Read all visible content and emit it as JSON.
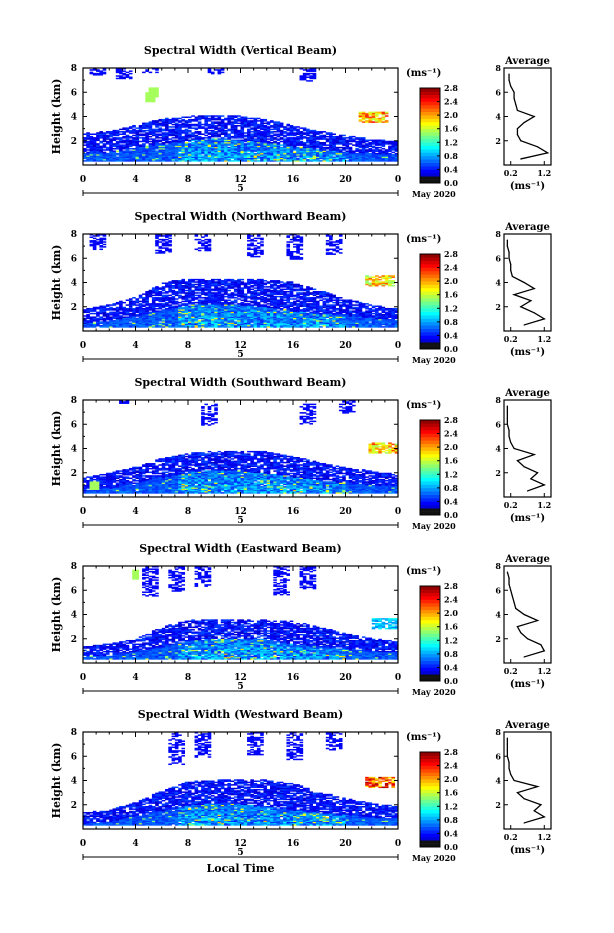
{
  "figure": {
    "x_label": "Local Time",
    "date_label": "May 2020",
    "day_label": "5",
    "ylabel": "Height (km)",
    "units": "(ms⁻¹)"
  },
  "chart_data": [
    {
      "type": "heatmap",
      "title": "Spectral Width (Vertical Beam)",
      "xlabel": "",
      "ylabel": "Height (km)",
      "xlim": [
        0,
        24
      ],
      "ylim": [
        0,
        8
      ],
      "x_ticks": [
        "0",
        "4",
        "8",
        "12",
        "16",
        "20",
        "0"
      ],
      "y_ticks": [
        "2",
        "4",
        "6",
        "8"
      ],
      "colorbar": {
        "label": "(ms⁻¹)",
        "range": [
          0,
          2.8
        ],
        "ticks": [
          "0.0",
          "0.4",
          "0.8",
          "1.2",
          "1.6",
          "2.0",
          "2.4",
          "2.8"
        ]
      },
      "structure": {
        "top_km": [
          2.6,
          2.8,
          3.3,
          3.8,
          4.0,
          4.1,
          4.0,
          3.7,
          3.2,
          2.8,
          2.4,
          2.1,
          1.9
        ],
        "core_top_km": [
          0.9,
          1.0,
          1.4,
          1.7,
          2.0,
          2.2,
          2.0,
          1.8,
          1.5,
          1.2,
          1.0,
          0.9,
          0.8
        ],
        "sparse": [
          [
            1,
            7.3,
            7.9
          ],
          [
            3,
            7.0,
            7.9
          ],
          [
            5,
            7.5,
            7.9
          ],
          [
            10,
            7.4,
            7.9
          ],
          [
            17,
            6.8,
            7.9
          ]
        ],
        "hotspot": [
          22,
          3.9,
          2.2
        ],
        "cyan": [
          [
            5,
            5.5
          ],
          [
            5.3,
            5.9
          ]
        ]
      },
      "average_profile": {
        "title": "Average",
        "xlabel": "(ms⁻¹)",
        "xlim": [
          0,
          1.4
        ],
        "ylim": [
          0,
          8
        ],
        "x_ticks": [
          "0.2",
          "1.2"
        ],
        "y_ticks": [
          "2",
          "4",
          "6",
          "8"
        ],
        "heights_km": [
          0.5,
          1.0,
          1.5,
          2.0,
          2.5,
          3.0,
          3.5,
          4.0,
          4.5,
          5.0,
          5.5,
          6.0,
          6.5,
          7.0,
          7.5
        ],
        "values": [
          0.5,
          1.3,
          1.0,
          0.5,
          0.4,
          0.4,
          0.6,
          0.9,
          0.4,
          0.35,
          0.3,
          0.3,
          0.2,
          0.15,
          0.15
        ]
      }
    },
    {
      "type": "heatmap",
      "title": "Spectral Width (Northward Beam)",
      "xlabel": "",
      "ylabel": "Height (km)",
      "xlim": [
        0,
        24
      ],
      "ylim": [
        0,
        8
      ],
      "x_ticks": [
        "0",
        "4",
        "8",
        "12",
        "16",
        "20",
        "0"
      ],
      "y_ticks": [
        "2",
        "4",
        "6",
        "8"
      ],
      "colorbar": {
        "label": "(ms⁻¹)",
        "range": [
          0,
          2.8
        ],
        "ticks": [
          "0.0",
          "0.4",
          "0.8",
          "1.2",
          "1.6",
          "2.0",
          "2.4",
          "2.8"
        ]
      },
      "structure": {
        "top_km": [
          1.8,
          2.2,
          2.8,
          4.0,
          4.3,
          4.3,
          4.3,
          4.2,
          4.0,
          3.3,
          2.6,
          2.1,
          1.8
        ],
        "core_top_km": [
          0.6,
          0.8,
          1.2,
          1.7,
          2.1,
          2.2,
          2.1,
          1.9,
          1.6,
          1.4,
          1.2,
          1.0,
          0.9
        ],
        "sparse": [
          [
            1,
            6.6,
            7.9
          ],
          [
            6,
            6.3,
            7.9
          ],
          [
            9,
            6.5,
            7.9
          ],
          [
            13,
            6.0,
            7.9
          ],
          [
            16,
            5.8,
            7.9
          ],
          [
            19,
            6.2,
            7.9
          ]
        ],
        "hotspot": [
          22.5,
          4.1,
          2.0
        ],
        "cyan": []
      },
      "average_profile": {
        "title": "Average",
        "xlabel": "(ms⁻¹)",
        "xlim": [
          0,
          1.4
        ],
        "ylim": [
          0,
          8
        ],
        "x_ticks": [
          "0.2",
          "1.2"
        ],
        "y_ticks": [
          "2",
          "4",
          "6",
          "8"
        ],
        "heights_km": [
          0.5,
          1.0,
          1.5,
          2.0,
          2.5,
          3.0,
          3.5,
          4.0,
          4.5,
          5.0,
          5.5,
          6.0,
          6.5,
          7.0,
          7.5
        ],
        "values": [
          0.6,
          1.2,
          0.9,
          0.5,
          0.8,
          0.3,
          0.9,
          0.6,
          0.25,
          0.2,
          0.2,
          0.15,
          0.15,
          0.1,
          0.1
        ]
      }
    },
    {
      "type": "heatmap",
      "title": "Spectral Width (Southward Beam)",
      "xlabel": "",
      "ylabel": "Height (km)",
      "xlim": [
        0,
        24
      ],
      "ylim": [
        0,
        8
      ],
      "x_ticks": [
        "0",
        "4",
        "8",
        "12",
        "16",
        "20",
        "0"
      ],
      "y_ticks": [
        "2",
        "4",
        "6",
        "8"
      ],
      "colorbar": {
        "label": "(ms⁻¹)",
        "range": [
          0,
          2.8
        ],
        "ticks": [
          "0.0",
          "0.4",
          "0.8",
          "1.2",
          "1.6",
          "2.0",
          "2.4",
          "2.8"
        ]
      },
      "structure": {
        "top_km": [
          1.6,
          2.0,
          2.5,
          3.2,
          3.6,
          3.8,
          3.8,
          3.7,
          3.3,
          2.8,
          2.4,
          2.1,
          1.8
        ],
        "core_top_km": [
          0.5,
          0.7,
          1.1,
          1.6,
          2.0,
          2.2,
          2.1,
          1.9,
          1.6,
          1.3,
          1.1,
          0.9,
          0.8
        ],
        "sparse": [
          [
            3,
            7.6,
            7.9
          ],
          [
            9.5,
            5.8,
            7.6
          ],
          [
            17,
            5.9,
            7.6
          ],
          [
            20,
            6.8,
            7.9
          ]
        ],
        "hotspot": [
          22.8,
          4.0,
          2.1
        ],
        "cyan": [
          [
            0.7,
            0.9
          ]
        ]
      },
      "average_profile": {
        "title": "Average",
        "xlabel": "(ms⁻¹)",
        "xlim": [
          0,
          1.4
        ],
        "ylim": [
          0,
          8
        ],
        "x_ticks": [
          "0.2",
          "1.2"
        ],
        "y_ticks": [
          "2",
          "4",
          "6",
          "8"
        ],
        "heights_km": [
          0.5,
          1.0,
          1.5,
          2.0,
          2.5,
          3.0,
          3.5,
          4.0,
          4.5,
          5.0,
          5.5,
          6.0,
          6.5,
          7.0,
          7.5
        ],
        "values": [
          0.7,
          1.2,
          0.8,
          1.0,
          0.6,
          0.4,
          0.9,
          0.3,
          0.2,
          0.15,
          0.15,
          0.1,
          0.1,
          0.1,
          0.1
        ]
      }
    },
    {
      "type": "heatmap",
      "title": "Spectral Width (Eastward Beam)",
      "xlabel": "",
      "ylabel": "Height (km)",
      "xlim": [
        0,
        24
      ],
      "ylim": [
        0,
        8
      ],
      "x_ticks": [
        "0",
        "4",
        "8",
        "12",
        "16",
        "20",
        "0"
      ],
      "y_ticks": [
        "2",
        "4",
        "6",
        "8"
      ],
      "colorbar": {
        "label": "(ms⁻¹)",
        "range": [
          0,
          2.8
        ],
        "ticks": [
          "0.0",
          "0.4",
          "0.8",
          "1.2",
          "1.6",
          "2.0",
          "2.4",
          "2.8"
        ]
      },
      "structure": {
        "top_km": [
          1.3,
          1.6,
          2.0,
          3.0,
          3.5,
          3.6,
          3.6,
          3.5,
          3.4,
          2.9,
          2.4,
          2.0,
          1.7
        ],
        "core_top_km": [
          0.5,
          0.6,
          0.9,
          1.3,
          1.8,
          2.0,
          2.0,
          1.9,
          1.5,
          1.3,
          1.1,
          0.9,
          0.8
        ],
        "sparse": [
          [
            5,
            5.4,
            7.9
          ],
          [
            7,
            5.8,
            7.9
          ],
          [
            9,
            6.2,
            7.9
          ],
          [
            15,
            5.5,
            7.9
          ],
          [
            17,
            6.0,
            7.9
          ]
        ],
        "hotspot": [
          23,
          3.2,
          1.0
        ],
        "cyan": [
          [
            3.9,
            7.2
          ]
        ]
      },
      "average_profile": {
        "title": "Average",
        "xlabel": "(ms⁻¹)",
        "xlim": [
          0,
          1.4
        ],
        "ylim": [
          0,
          8
        ],
        "x_ticks": [
          "0.2",
          "1.2"
        ],
        "y_ticks": [
          "2",
          "4",
          "6",
          "8"
        ],
        "heights_km": [
          0.5,
          1.0,
          1.5,
          2.0,
          2.5,
          3.0,
          3.5,
          4.0,
          4.5,
          5.0,
          5.5,
          6.0,
          6.5,
          7.0,
          7.5
        ],
        "values": [
          0.6,
          1.2,
          1.1,
          0.7,
          0.5,
          0.4,
          1.0,
          0.6,
          0.35,
          0.3,
          0.25,
          0.2,
          0.15,
          0.15,
          0.1
        ]
      }
    },
    {
      "type": "heatmap",
      "title": "Spectral Width (Westward Beam)",
      "xlabel": "Local Time",
      "ylabel": "Height (km)",
      "xlim": [
        0,
        24
      ],
      "ylim": [
        0,
        8
      ],
      "x_ticks": [
        "0",
        "4",
        "8",
        "12",
        "16",
        "20",
        "0"
      ],
      "y_ticks": [
        "2",
        "4",
        "6",
        "8"
      ],
      "colorbar": {
        "label": "(ms⁻¹)",
        "range": [
          0,
          2.8
        ],
        "ticks": [
          "0.0",
          "0.4",
          "0.8",
          "1.2",
          "1.6",
          "2.0",
          "2.4",
          "2.8"
        ]
      },
      "structure": {
        "top_km": [
          1.3,
          1.6,
          2.2,
          3.2,
          3.9,
          4.0,
          4.1,
          4.0,
          3.7,
          3.0,
          2.5,
          2.1,
          1.8
        ],
        "core_top_km": [
          0.4,
          0.6,
          1.0,
          1.5,
          1.9,
          2.1,
          2.0,
          1.8,
          1.5,
          1.3,
          1.1,
          0.9,
          0.8
        ],
        "sparse": [
          [
            7,
            5.2,
            7.9
          ],
          [
            9,
            5.8,
            7.9
          ],
          [
            13,
            6.0,
            7.9
          ],
          [
            16,
            5.6,
            7.9
          ],
          [
            19,
            6.4,
            7.9
          ]
        ],
        "hotspot": [
          22.5,
          3.8,
          2.5
        ],
        "cyan": []
      },
      "average_profile": {
        "title": "Average",
        "xlabel": "(ms⁻¹)",
        "xlim": [
          0,
          1.4
        ],
        "ylim": [
          0,
          8
        ],
        "x_ticks": [
          "0.2",
          "1.2"
        ],
        "y_ticks": [
          "2",
          "4",
          "6",
          "8"
        ],
        "heights_km": [
          0.5,
          1.0,
          1.5,
          2.0,
          2.5,
          3.0,
          3.5,
          4.0,
          4.5,
          5.0,
          5.5,
          6.0,
          6.5,
          7.0,
          7.5
        ],
        "values": [
          0.6,
          1.2,
          0.9,
          1.1,
          0.6,
          0.4,
          1.0,
          0.3,
          0.2,
          0.15,
          0.15,
          0.1,
          0.1,
          0.1,
          0.1
        ]
      }
    }
  ]
}
